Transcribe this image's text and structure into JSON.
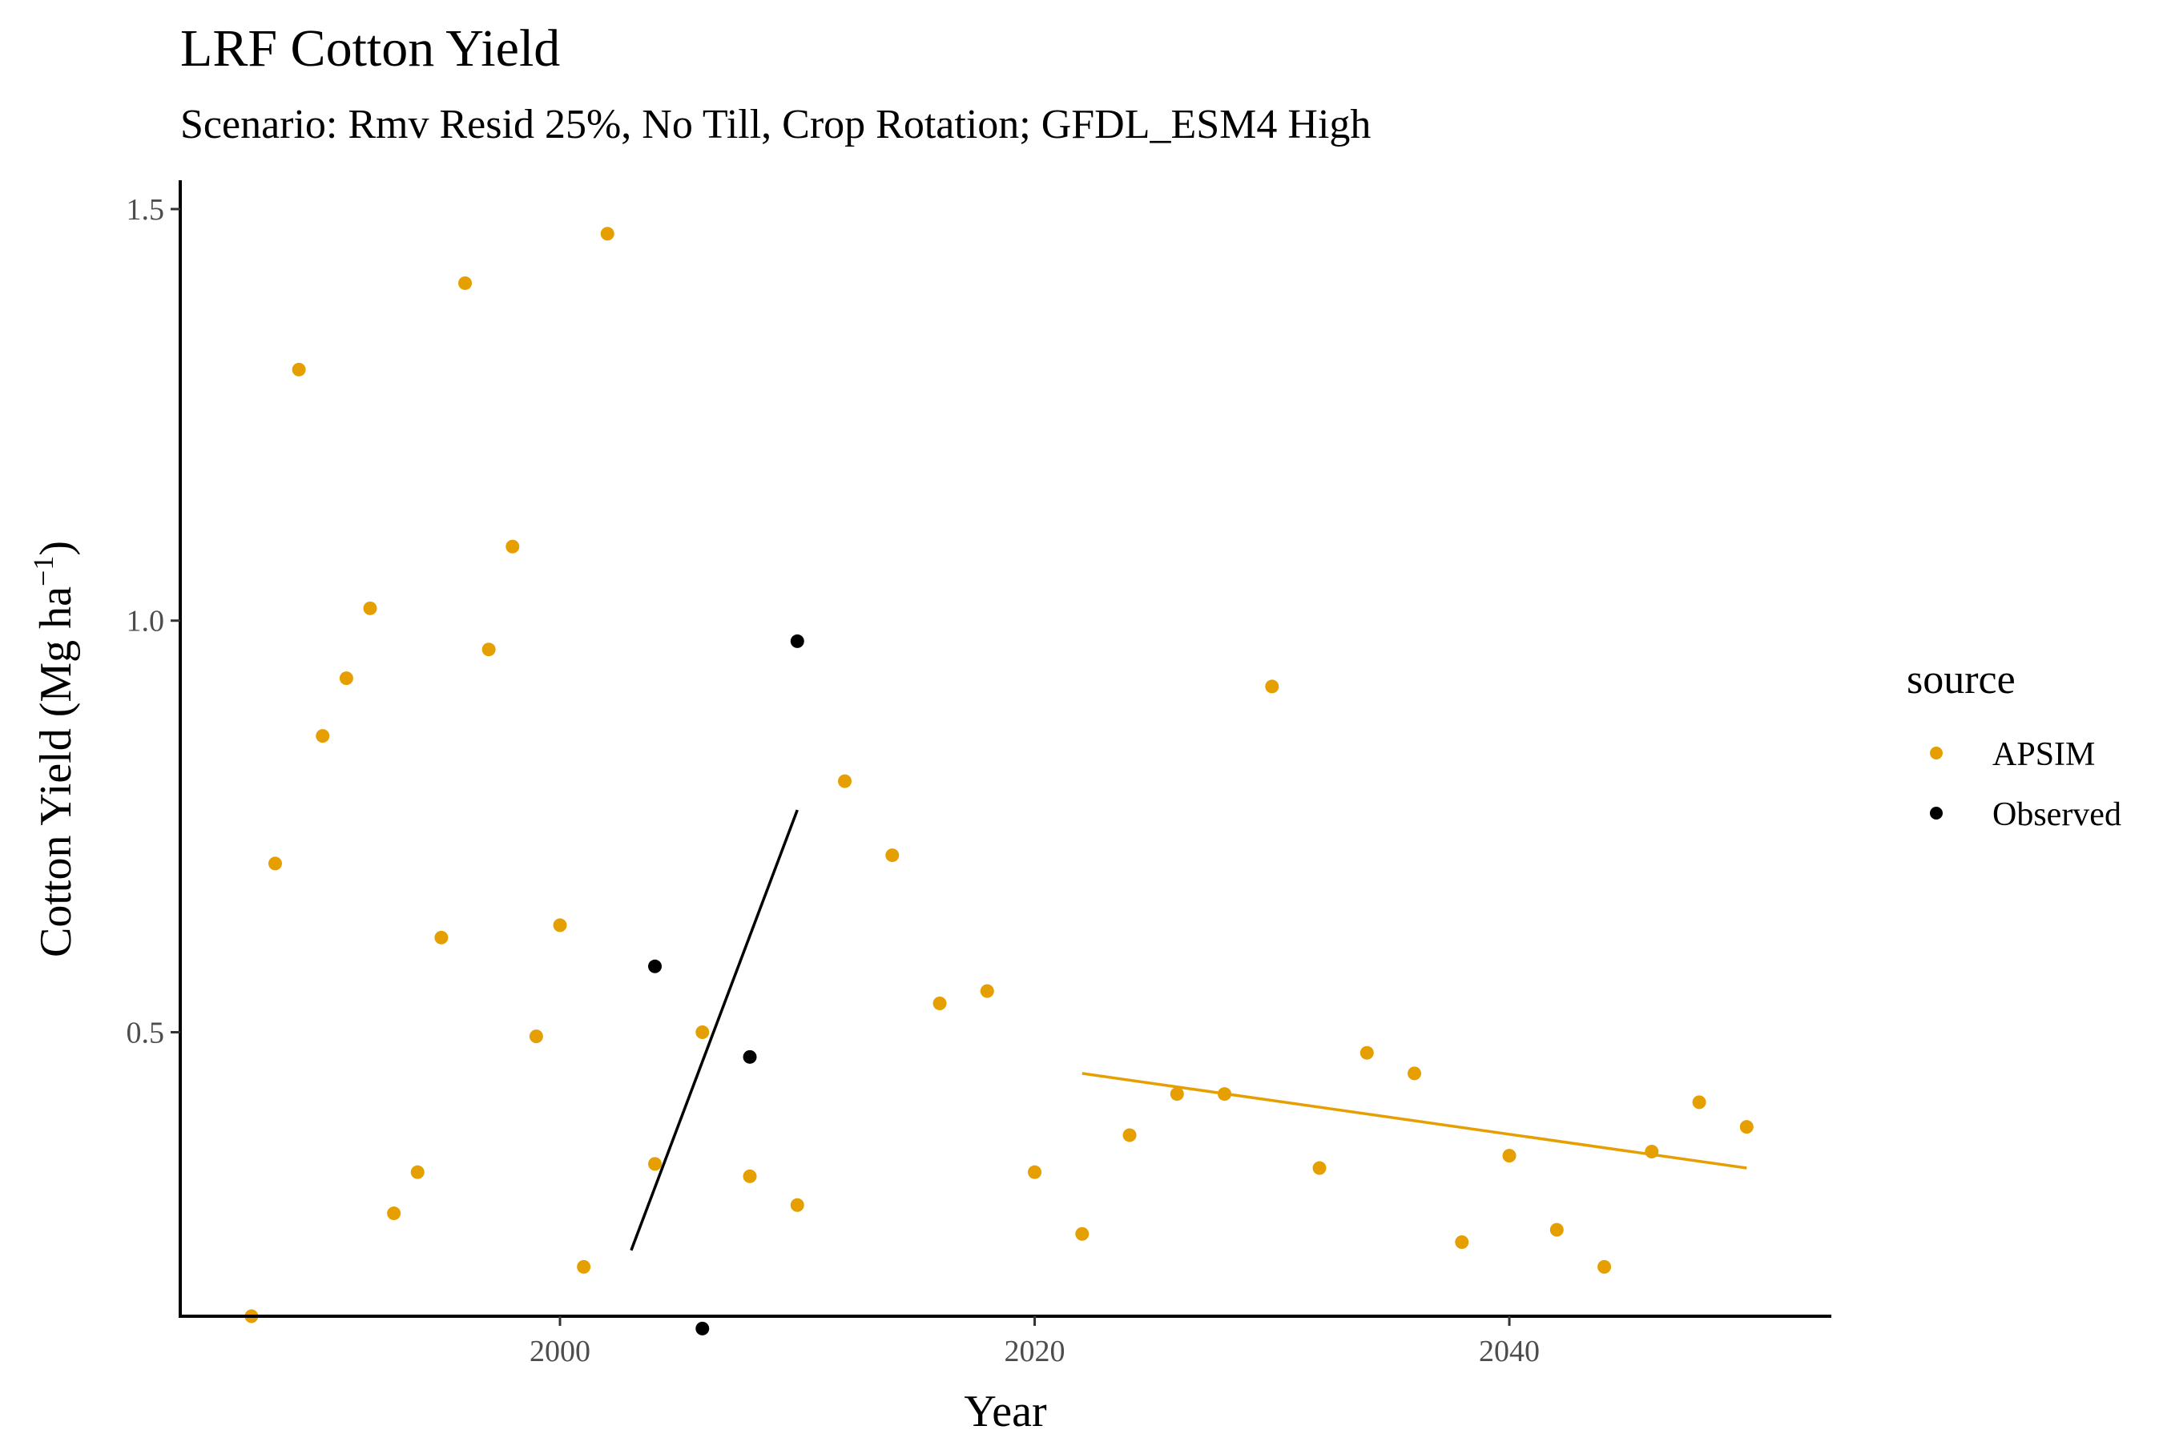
{
  "chart_data": {
    "type": "scatter",
    "title": "LRF Cotton Yield",
    "subtitle": "Scenario: Rmv Resid 25%, No Till, Crop Rotation; GFDL_ESM4 High",
    "xlabel": "Year",
    "ylabel_main": "Cotton Yield (Mg ha",
    "ylabel_sup": "−1",
    "ylabel_close": ")",
    "xlim": [
      1984,
      2053.5
    ],
    "ylim": [
      0.155,
      1.535
    ],
    "xticks": [
      2000,
      2020,
      2040
    ],
    "yticks": [
      0.5,
      1.0,
      1.5
    ],
    "ytick_labels": [
      "0.5",
      "1.0",
      "1.5"
    ],
    "legend": {
      "title": "source",
      "position": "right"
    },
    "grid": false,
    "series": [
      {
        "name": "APSIM",
        "color": "#E69F00",
        "x": [
          1987,
          1988,
          1989,
          1990,
          1991,
          1992,
          1993,
          1994,
          1995,
          1996,
          1997,
          1998,
          1999,
          2000,
          2001,
          2002,
          2004,
          2006,
          2008,
          2010,
          2012,
          2014,
          2016,
          2018,
          2020,
          2022,
          2024,
          2026,
          2028,
          2030,
          2032,
          2034,
          2036,
          2038,
          2040,
          2042,
          2044,
          2046,
          2048,
          2050
        ],
        "y": [
          0.155,
          0.705,
          1.305,
          0.86,
          0.93,
          1.015,
          0.28,
          0.33,
          0.615,
          1.41,
          0.965,
          1.09,
          0.495,
          0.63,
          0.215,
          1.47,
          0.34,
          0.5,
          0.325,
          0.29,
          0.805,
          0.715,
          0.535,
          0.55,
          0.33,
          0.255,
          0.375,
          0.425,
          0.425,
          0.92,
          0.335,
          0.475,
          0.45,
          0.245,
          0.35,
          0.26,
          0.215,
          0.355,
          0.415,
          0.385
        ]
      },
      {
        "name": "Observed",
        "color": "#000000",
        "x": [
          2004,
          2006,
          2008,
          2010
        ],
        "y": [
          0.58,
          0.14,
          0.47,
          0.975
        ]
      }
    ],
    "trendlines": [
      {
        "series": "Observed",
        "color": "#000000",
        "x": [
          2003,
          2010
        ],
        "y": [
          0.235,
          0.77
        ]
      },
      {
        "series": "APSIM",
        "color": "#E69F00",
        "x": [
          2022,
          2050
        ],
        "y": [
          0.45,
          0.335
        ]
      }
    ]
  }
}
